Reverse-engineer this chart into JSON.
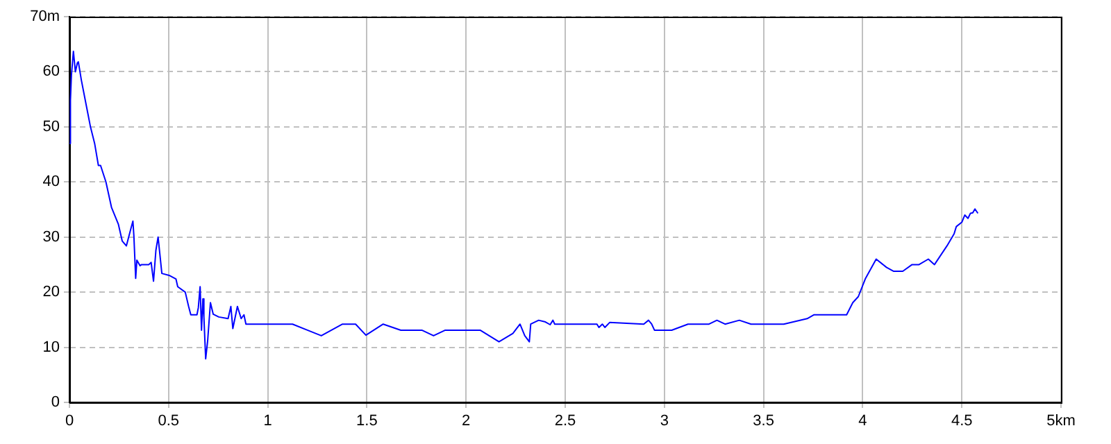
{
  "chart_data": {
    "type": "line",
    "x": [
      0,
      0.005,
      0.01,
      0.02,
      0.03,
      0.04,
      0.045,
      0.06,
      0.087,
      0.106,
      0.127,
      0.146,
      0.157,
      0.184,
      0.212,
      0.247,
      0.266,
      0.287,
      0.306,
      0.32,
      0.325,
      0.334,
      0.34,
      0.356,
      0.364,
      0.4,
      0.412,
      0.424,
      0.436,
      0.447,
      0.454,
      0.466,
      0.506,
      0.537,
      0.546,
      0.584,
      0.601,
      0.612,
      0.643,
      0.65,
      0.659,
      0.666,
      0.673,
      0.678,
      0.687,
      0.697,
      0.711,
      0.725,
      0.753,
      0.8,
      0.814,
      0.824,
      0.847,
      0.866,
      0.88,
      0.89,
      1.125,
      1.2,
      1.27,
      1.377,
      1.443,
      1.495,
      1.582,
      1.671,
      1.777,
      1.836,
      1.895,
      2.071,
      2.166,
      2.236,
      2.272,
      2.296,
      2.319,
      2.326,
      2.366,
      2.4,
      2.424,
      2.438,
      2.447,
      2.66,
      2.67,
      2.687,
      2.7,
      2.724,
      2.896,
      2.92,
      2.936,
      2.95,
      3.037,
      3.119,
      3.225,
      3.265,
      3.306,
      3.378,
      3.437,
      3.602,
      3.72,
      3.755,
      3.919,
      3.95,
      3.978,
      4.013,
      4.068,
      4.12,
      4.155,
      4.202,
      4.249,
      4.284,
      4.331,
      4.362,
      4.425,
      4.461,
      4.472,
      4.5,
      4.515,
      4.531,
      4.543,
      4.555,
      4.566,
      4.581
    ],
    "series": [
      {
        "color": "#0000ff",
        "values": [
          47,
          54.8,
          59.4,
          63.7,
          60,
          61.6,
          61.8,
          58.5,
          53.5,
          50,
          47,
          43,
          43,
          40,
          35.4,
          32.3,
          29.3,
          28.4,
          31,
          32.9,
          30.2,
          22.5,
          25.8,
          24.8,
          25,
          25,
          25.4,
          22,
          27.6,
          30,
          27.6,
          23.4,
          23,
          22.4,
          21,
          20,
          17.4,
          15.9,
          15.9,
          17.2,
          21,
          13.1,
          18.8,
          15.5,
          7.9,
          11.2,
          18.1,
          16,
          15.5,
          15.2,
          17.4,
          13.4,
          17.4,
          15.2,
          15.9,
          14.2,
          14.2,
          13.1,
          12.1,
          14.2,
          14.2,
          12.2,
          14.2,
          13.1,
          13.1,
          12.1,
          13.1,
          13.1,
          11,
          12.5,
          14.2,
          12.1,
          11,
          14.2,
          14.9,
          14.6,
          14.1,
          14.9,
          14.2,
          14.2,
          13.6,
          14.2,
          13.6,
          14.5,
          14.2,
          14.9,
          14.2,
          13.1,
          13.1,
          14.2,
          14.2,
          14.9,
          14.2,
          14.9,
          14.2,
          14.2,
          15.2,
          15.9,
          15.9,
          18.1,
          19.2,
          22.4,
          26,
          24.5,
          23.8,
          23.8,
          25,
          25,
          26,
          25,
          28.4,
          30.6,
          31.9,
          32.7,
          34,
          33.4,
          34.3,
          34.4,
          35.1,
          34.3
        ]
      }
    ],
    "xlim": [
      0,
      5
    ],
    "xticks": [
      0,
      0.5,
      1,
      1.5,
      2,
      2.5,
      3,
      3.5,
      4,
      4.5,
      {
        "value": 5,
        "label": "5km"
      }
    ],
    "ylim": [
      0,
      70
    ],
    "yticks": [
      0,
      10,
      20,
      30,
      40,
      50,
      60,
      {
        "value": 70,
        "label": "70m"
      }
    ],
    "grid": true,
    "legend": false,
    "marker": "none",
    "line_style": "solid"
  }
}
